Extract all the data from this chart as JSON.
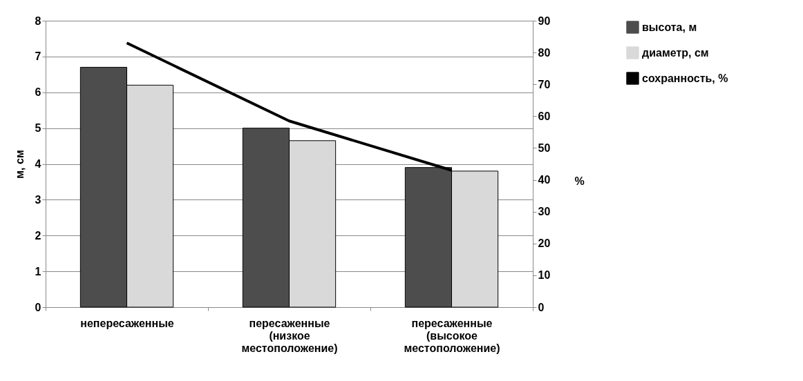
{
  "chart_data": {
    "type": "bar",
    "categories": [
      "непересаженные",
      "пересаженные (низкое местоположение)",
      "пересаженные (высокое местоположение)"
    ],
    "series": [
      {
        "name": "высота, м",
        "color": "#4d4d4d",
        "values": [
          6.7,
          5.0,
          3.9
        ]
      },
      {
        "name": "диаметр, см",
        "color": "#d9d9d9",
        "values": [
          6.2,
          4.65,
          3.8
        ]
      },
      {
        "name": "сохранность, %",
        "type": "line",
        "axis": "y2",
        "color": "#000000",
        "values": [
          83,
          58.5,
          43
        ]
      }
    ],
    "ylabel": "м, см",
    "y2label": "%",
    "ylim": [
      0,
      8
    ],
    "yticks": [
      0,
      1,
      2,
      3,
      4,
      5,
      6,
      7,
      8
    ],
    "y2lim": [
      0,
      90
    ],
    "y2ticks": [
      0,
      10,
      20,
      30,
      40,
      50,
      60,
      70,
      80,
      90
    ],
    "grid": "y",
    "legend": "right"
  }
}
